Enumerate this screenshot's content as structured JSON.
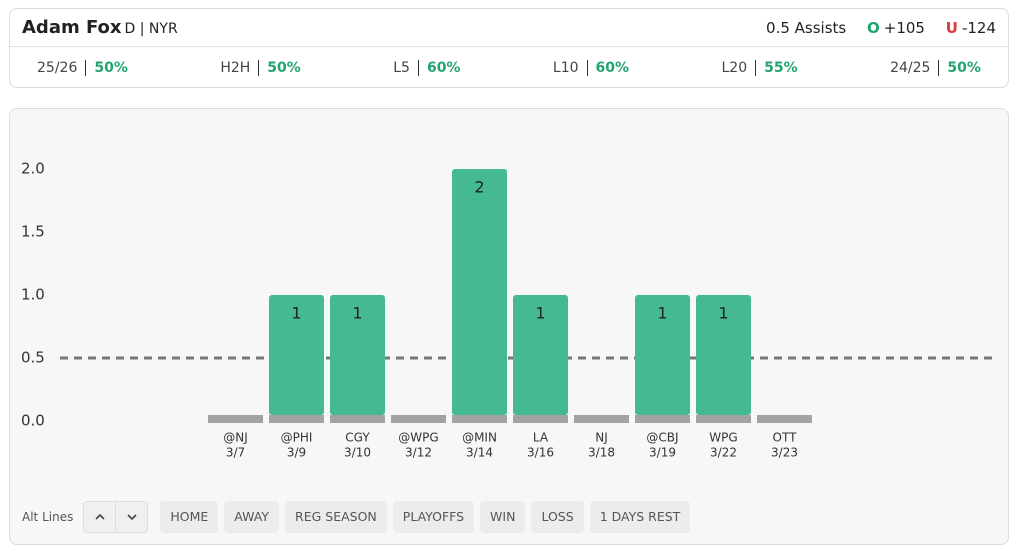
{
  "header": {
    "player": "Adam Fox",
    "position": "D | NYR",
    "prop": "0.5 Assists",
    "over_label": "O",
    "over_odds": "+105",
    "under_label": "U",
    "under_odds": "-124"
  },
  "splits": [
    {
      "label": "25/26",
      "value": "50%"
    },
    {
      "label": "H2H",
      "value": "50%"
    },
    {
      "label": "L5",
      "value": "60%"
    },
    {
      "label": "L10",
      "value": "60%"
    },
    {
      "label": "L20",
      "value": "55%"
    },
    {
      "label": "24/25",
      "value": "50%"
    }
  ],
  "chart_data": {
    "type": "bar",
    "categories": [
      "@NJ",
      "@PHI",
      "CGY",
      "@WPG",
      "@MIN",
      "LA",
      "NJ",
      "@CBJ",
      "WPG",
      "OTT"
    ],
    "dates": [
      "3/7",
      "3/9",
      "3/10",
      "3/12",
      "3/14",
      "3/16",
      "3/18",
      "3/19",
      "3/22",
      "3/23"
    ],
    "values": [
      0,
      1,
      1,
      0,
      2,
      1,
      0,
      1,
      1,
      0
    ],
    "color": "#45b991",
    "threshold": 0.5,
    "ylim": [
      0,
      2
    ],
    "yticks": [
      {
        "value": 0,
        "label": "0.0"
      },
      0.5,
      {
        "value": 1,
        "label": "1.0"
      },
      1.5,
      {
        "value": 2,
        "label": "2.0"
      }
    ]
  },
  "footer": {
    "alt_lines": "Alt Lines",
    "filters": [
      "HOME",
      "AWAY",
      "REG SEASON",
      "PLAYOFFS",
      "WIN",
      "LOSS",
      "1 DAYS REST"
    ]
  }
}
